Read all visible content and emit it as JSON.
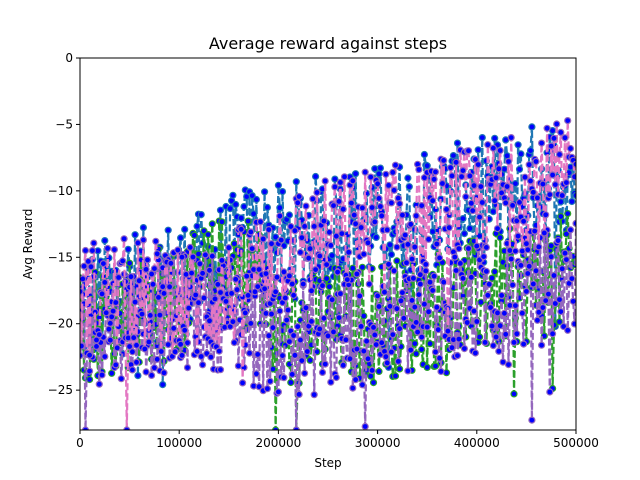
{
  "chart_data": {
    "type": "line",
    "title": "Average reward against steps",
    "xlabel": "Step",
    "ylabel": "Avg Reward",
    "xlim": [
      0,
      500000
    ],
    "ylim": [
      -28,
      0
    ],
    "grid": false,
    "legend": "none",
    "x_ticks": [
      0,
      100000,
      200000,
      300000,
      400000,
      500000
    ],
    "x_tick_labels": [
      "0",
      "100000",
      "200000",
      "300000",
      "400000",
      "500000"
    ],
    "y_ticks": [
      0,
      -5,
      -10,
      -15,
      -20,
      -25
    ],
    "y_tick_labels": [
      "0",
      "−5",
      "−10",
      "−15",
      "−20",
      "−25"
    ],
    "marker": {
      "face": "#0000ff",
      "size": 3
    },
    "series": [
      {
        "color": "#1f77b4",
        "marker_edge": "#1f77b4",
        "x": [
          0,
          25000,
          50000,
          75000,
          100000,
          125000,
          150000,
          175000,
          200000,
          225000,
          250000,
          275000,
          300000,
          325000,
          350000,
          375000,
          400000,
          425000,
          450000,
          475000,
          500000
        ],
        "y": [
          -19,
          -18,
          -17.5,
          -17,
          -16.5,
          -16,
          -15,
          -13.5,
          -14,
          -13.5,
          -13,
          -12.5,
          -12.5,
          -12,
          -11.5,
          -11,
          -10.5,
          -10,
          -9.5,
          -9,
          -8.5
        ],
        "spread": 4.5
      },
      {
        "color": "#2ca02c",
        "marker_edge": "#2ca02c",
        "x": [
          0,
          25000,
          50000,
          75000,
          100000,
          125000,
          150000,
          175000,
          200000,
          225000,
          250000,
          275000,
          300000,
          325000,
          350000,
          375000,
          400000,
          425000,
          450000,
          475000,
          500000
        ],
        "y": [
          -20,
          -19.5,
          -19,
          -18.5,
          -18.5,
          -17,
          -16,
          -16,
          -21,
          -20.5,
          -20,
          -20,
          -19.5,
          -19.5,
          -19,
          -18.5,
          -18,
          -17.5,
          -17,
          -16.5,
          -16
        ],
        "spread": 4.5
      },
      {
        "color": "#9467bd",
        "marker_edge": "#9467bd",
        "x": [
          0,
          25000,
          50000,
          75000,
          100000,
          125000,
          150000,
          175000,
          200000,
          225000,
          250000,
          275000,
          300000,
          325000,
          350000,
          375000,
          400000,
          425000,
          450000,
          475000,
          500000
        ],
        "y": [
          -20.5,
          -20,
          -19.5,
          -19.5,
          -19,
          -19,
          -19,
          -20.5,
          -21,
          -21,
          -21,
          -20.5,
          -20,
          -20,
          -19.5,
          -19,
          -18.5,
          -18,
          -17.5,
          -17,
          -16.5
        ],
        "spread": 4.5
      },
      {
        "color": "#e377c2",
        "marker_edge": "#9467bd",
        "x": [
          0,
          25000,
          50000,
          75000,
          100000,
          125000,
          150000,
          175000,
          200000,
          225000,
          250000,
          275000,
          300000,
          325000,
          350000,
          375000,
          400000,
          425000,
          450000,
          475000,
          500000
        ],
        "y": [
          -18,
          -18,
          -18,
          -18,
          -18,
          -18.5,
          -18,
          -16,
          -14.5,
          -14,
          -13.5,
          -13,
          -12.5,
          -12.5,
          -12,
          -11.5,
          -11,
          -10.5,
          -10,
          -9.5,
          -9
        ],
        "spread": 4.5
      }
    ]
  }
}
